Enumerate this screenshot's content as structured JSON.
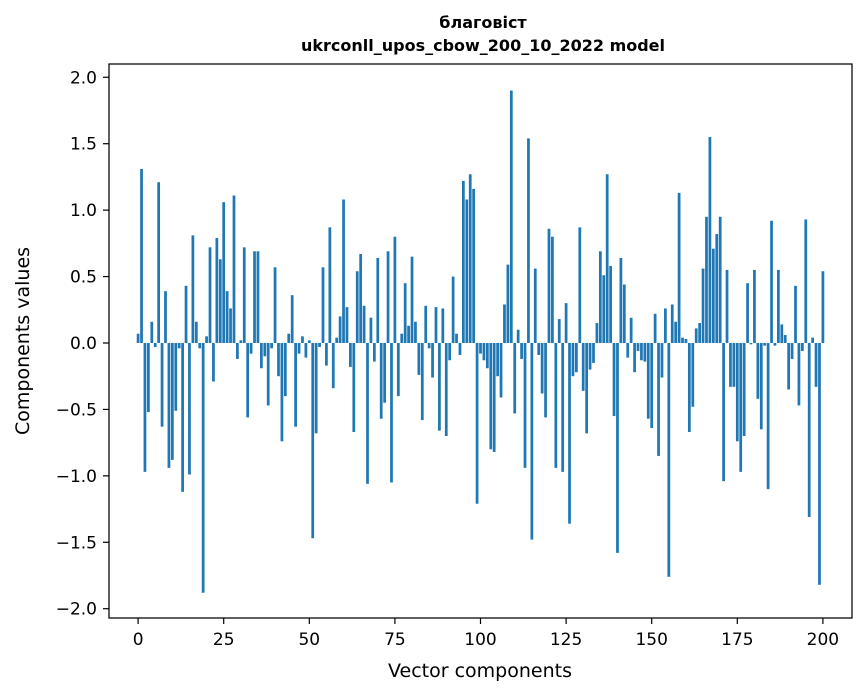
{
  "chart_data": {
    "type": "bar",
    "title": "благовіст",
    "subtitle": "ukrconll_upos_cbow_200_10_2022 model",
    "xlabel": "Vector components",
    "ylabel": "Components values",
    "xlim": [
      -8.5,
      208.5
    ],
    "ylim": [
      -2.07,
      2.1
    ],
    "xticks": [
      0,
      25,
      50,
      75,
      100,
      125,
      150,
      175,
      200
    ],
    "yticks": [
      -2.0,
      -1.5,
      -1.0,
      -0.5,
      0.0,
      0.5,
      1.0,
      1.5,
      2.0
    ],
    "ytick_labels": [
      "−2.0",
      "−1.5",
      "−1.0",
      "−0.5",
      "0.0",
      "0.5",
      "1.0",
      "1.5",
      "2.0"
    ],
    "bar_color": "#1f77b4",
    "grid": false,
    "values": [
      0.07,
      1.31,
      -0.97,
      -0.52,
      0.16,
      -0.03,
      1.21,
      -0.63,
      0.39,
      -0.94,
      -0.88,
      -0.51,
      -0.04,
      -1.12,
      0.43,
      -0.99,
      0.81,
      0.16,
      -0.04,
      -1.88,
      0.05,
      0.72,
      -0.29,
      0.79,
      0.63,
      1.06,
      0.39,
      0.26,
      1.11,
      -0.12,
      0.02,
      0.72,
      -0.56,
      -0.08,
      0.69,
      0.69,
      -0.19,
      -0.1,
      -0.47,
      -0.04,
      0.57,
      -0.25,
      -0.74,
      -0.4,
      0.07,
      0.36,
      -0.63,
      -0.08,
      0.05,
      -0.11,
      0.02,
      -1.47,
      -0.68,
      -0.03,
      0.57,
      -0.17,
      0.87,
      -0.34,
      0.04,
      0.2,
      1.08,
      0.27,
      -0.18,
      -0.67,
      0.54,
      0.67,
      0.28,
      -1.06,
      0.19,
      -0.14,
      0.64,
      -0.57,
      -0.45,
      0.69,
      -1.05,
      0.8,
      -0.4,
      0.07,
      0.45,
      0.13,
      0.65,
      0.16,
      -0.24,
      -0.58,
      0.28,
      -0.04,
      -0.26,
      0.27,
      -0.66,
      0.26,
      -0.7,
      -0.13,
      0.5,
      0.07,
      -0.09,
      1.22,
      1.08,
      1.27,
      1.16,
      -1.21,
      -0.08,
      -0.13,
      -0.19,
      -0.8,
      -0.82,
      -0.25,
      -0.41,
      0.29,
      0.59,
      1.9,
      -0.53,
      0.1,
      -0.12,
      -0.94,
      1.54,
      -1.48,
      0.56,
      -0.09,
      -0.38,
      -0.56,
      0.86,
      0.8,
      -0.94,
      0.18,
      -0.97,
      0.3,
      -1.36,
      -0.25,
      -0.22,
      0.87,
      -0.36,
      -0.68,
      -0.2,
      -0.15,
      0.15,
      0.69,
      0.51,
      1.27,
      0.58,
      -0.55,
      -1.58,
      0.64,
      0.44,
      -0.11,
      0.19,
      -0.22,
      -0.06,
      -0.13,
      -0.14,
      -0.57,
      -0.64,
      0.22,
      -0.85,
      -0.26,
      0.26,
      -1.76,
      0.29,
      0.16,
      1.13,
      0.04,
      0.03,
      -0.67,
      -0.48,
      0.11,
      0.15,
      0.56,
      0.95,
      1.55,
      0.71,
      0.82,
      0.95,
      -1.04,
      0.55,
      -0.33,
      -0.33,
      -0.74,
      -0.97,
      -0.7,
      0.45,
      -0.01,
      0.55,
      -0.42,
      -0.65,
      -0.02,
      -1.1,
      0.92,
      -0.02,
      0.55,
      0.14,
      0.06,
      -0.35,
      -0.12,
      0.43,
      -0.47,
      -0.06,
      0.93,
      -1.31,
      0.04,
      -0.33,
      -1.82,
      0.54
    ]
  }
}
